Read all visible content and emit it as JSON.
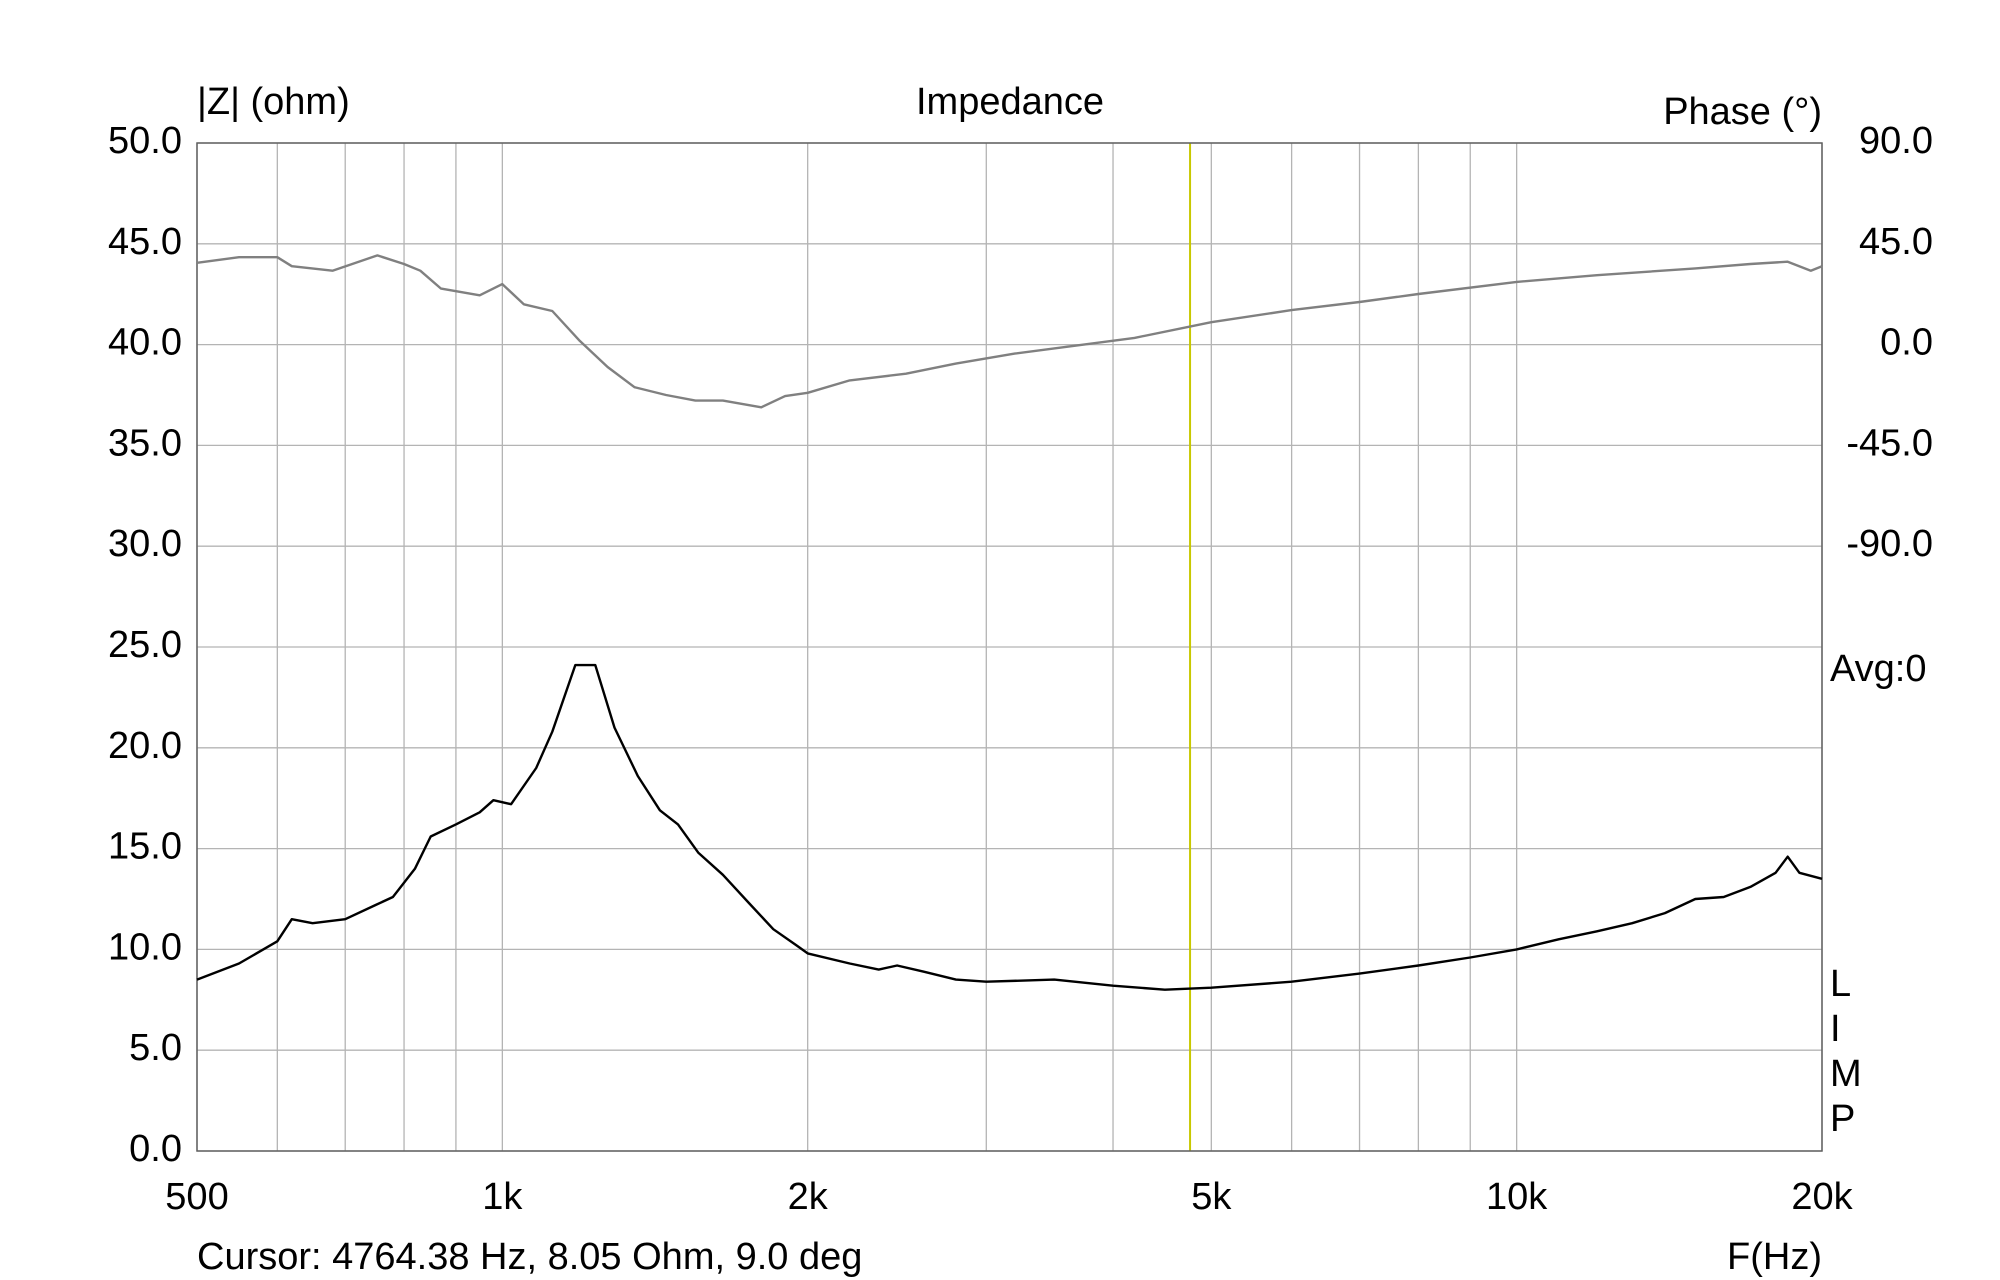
{
  "chart_data": {
    "type": "line",
    "title": "Impedance",
    "y_label": "|Z| (ohm)",
    "y2_label": "Phase (°)",
    "x_label": "F(Hz)",
    "avg_label": "Avg:0",
    "side_label": [
      "L",
      "I",
      "M",
      "P"
    ],
    "cursor": {
      "x": 4764.38,
      "label": "Cursor: 4764.38 Hz, 8.05 Ohm, 9.0 deg",
      "color": "#c8c800"
    },
    "xscale": "log",
    "grid": true,
    "xlim": [
      500,
      20000
    ],
    "xticks": [
      500,
      {
        "value": 1000,
        "label": "1k"
      },
      {
        "value": 2000,
        "label": "2k"
      },
      {
        "value": 5000,
        "label": "5k"
      },
      {
        "value": 10000,
        "label": "10k"
      },
      {
        "value": 20000,
        "label": "20k"
      }
    ],
    "x_minor_grid": [
      600,
      700,
      800,
      900,
      3000,
      4000,
      6000,
      7000,
      8000,
      9000
    ],
    "ylim": [
      0,
      50
    ],
    "yticks": [
      {
        "value": 0,
        "label": "0.0"
      },
      {
        "value": 5,
        "label": "5.0"
      },
      {
        "value": 10,
        "label": "10.0"
      },
      {
        "value": 15,
        "label": "15.0"
      },
      {
        "value": 20,
        "label": "20.0"
      },
      {
        "value": 25,
        "label": "25.0"
      },
      {
        "value": 30,
        "label": "30.0"
      },
      {
        "value": 35,
        "label": "35.0"
      },
      {
        "value": 40,
        "label": "40.0"
      },
      {
        "value": 45,
        "label": "45.0"
      },
      {
        "value": 50,
        "label": "50.0"
      }
    ],
    "y2lim": [
      -360,
      90
    ],
    "y2ticks": [
      {
        "value": 90,
        "label": "90.0"
      },
      {
        "value": 45,
        "label": "45.0"
      },
      {
        "value": 0,
        "label": "0.0"
      },
      {
        "value": -45,
        "label": "-45.0"
      },
      {
        "value": -90,
        "label": "-90.0"
      }
    ],
    "series": [
      {
        "name": "Impedance",
        "color": "#000000",
        "x": [
          500,
          550,
          600,
          620,
          650,
          700,
          750,
          780,
          820,
          850,
          900,
          950,
          980,
          1020,
          1080,
          1120,
          1180,
          1235,
          1290,
          1360,
          1430,
          1490,
          1560,
          1650,
          1750,
          1850,
          1950,
          2000,
          2200,
          2350,
          2450,
          2600,
          2800,
          3000,
          3500,
          4000,
          4500,
          5000,
          6000,
          7000,
          8000,
          9000,
          10000,
          11000,
          12000,
          13000,
          14000,
          15000,
          16000,
          17000,
          18000,
          18500,
          19000,
          20000
        ],
        "values": [
          8.5,
          9.3,
          10.4,
          11.5,
          11.3,
          11.5,
          12.2,
          12.6,
          14.0,
          15.6,
          16.2,
          16.8,
          17.4,
          17.2,
          19.0,
          20.8,
          24.1,
          24.1,
          21.0,
          18.6,
          16.9,
          16.2,
          14.8,
          13.7,
          12.3,
          11.0,
          10.2,
          9.8,
          9.3,
          9.0,
          9.2,
          8.9,
          8.5,
          8.4,
          8.5,
          8.2,
          8.0,
          8.1,
          8.4,
          8.8,
          9.2,
          9.6,
          10.0,
          10.5,
          10.9,
          11.3,
          11.8,
          12.5,
          12.6,
          13.1,
          13.8,
          14.6,
          13.8,
          13.5
        ]
      },
      {
        "name": "Phase",
        "color": "#808080",
        "axis": "y2",
        "x": [
          500,
          550,
          600,
          620,
          680,
          753,
          800,
          830,
          870,
          950,
          1000,
          1050,
          1120,
          1190,
          1270,
          1350,
          1450,
          1550,
          1650,
          1800,
          1900,
          2000,
          2200,
          2500,
          2800,
          3200,
          3600,
          4200,
          5000,
          6000,
          7000,
          8000,
          10000,
          12000,
          15000,
          17000,
          18500,
          19500,
          20000
        ],
        "values": [
          36.5,
          39,
          39,
          35,
          33,
          39.8,
          36,
          33,
          25,
          22,
          27,
          18,
          15,
          2,
          -10,
          -19,
          -22.5,
          -25,
          -25,
          -28,
          -23,
          -21.5,
          -16,
          -13,
          -8.5,
          -4,
          -1,
          3,
          10,
          15.4,
          19,
          22.6,
          28,
          31,
          34,
          36,
          37,
          33,
          35
        ]
      }
    ]
  }
}
